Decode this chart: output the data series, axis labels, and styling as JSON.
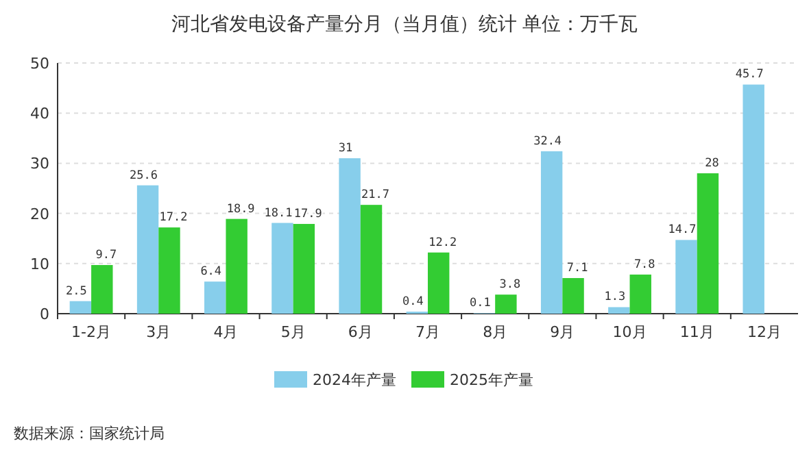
{
  "chart_data": {
    "type": "bar",
    "title": "河北省发电设备产量分月（当月值）统计  单位：万千瓦",
    "categories": [
      "1-2月",
      "3月",
      "4月",
      "5月",
      "6月",
      "7月",
      "8月",
      "9月",
      "10月",
      "11月",
      "12月"
    ],
    "series": [
      {
        "name": "2024年产量",
        "color": "#87ceeb",
        "values": [
          2.5,
          25.6,
          6.4,
          18.1,
          31,
          0.4,
          0.1,
          32.4,
          1.3,
          14.7,
          45.7
        ]
      },
      {
        "name": "2025年产量",
        "color": "#33cc33",
        "values": [
          9.7,
          17.2,
          18.9,
          17.9,
          21.7,
          12.2,
          3.8,
          7.1,
          7.8,
          28,
          null
        ]
      }
    ],
    "ylim": [
      0,
      50
    ],
    "yticks": [
      0,
      10,
      20,
      30,
      40,
      50
    ],
    "grid": "y",
    "legend": "bottom",
    "data_labels": true,
    "annotations": [
      "数据来源：国家统计局"
    ]
  }
}
